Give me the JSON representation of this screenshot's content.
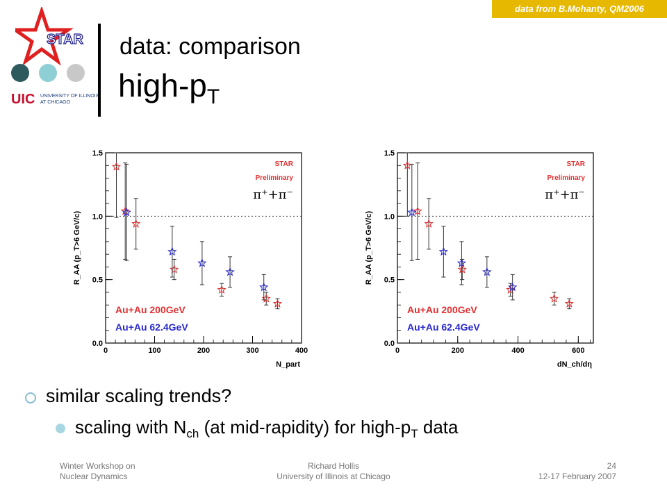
{
  "source_note": "data from B.Mohanty, QM2006",
  "logo": {
    "star_text": "STAR",
    "uic_mark": "UIC",
    "uic_name_line1": "UNIVERSITY OF ILLINOIS",
    "uic_name_line2": "AT CHICAGO",
    "dot_colors": [
      "#2e5a5e",
      "#8ecfd6",
      "#c8c8c8"
    ]
  },
  "title": {
    "line1": "data: comparison",
    "line2_main": "high-p",
    "line2_sub": "T"
  },
  "bullets": {
    "b1": "similar scaling trends?",
    "b2_pre": "scaling with N",
    "b2_sub1": "ch",
    "b2_mid": " (at mid-rapidity) for high-p",
    "b2_sub2": "T",
    "b2_post": " data"
  },
  "footer": {
    "left_line1": "Winter Workshop on",
    "left_line2": "Nuclear Dynamics",
    "center_line1": "Richard Hollis",
    "center_line2": "University of Illinois at Chicago",
    "right_line1": "24",
    "right_line2": "12-17 February 2007"
  },
  "colors": {
    "red": "#e03030",
    "blue": "#2a2ad0",
    "label_red": "#e03030",
    "label_blue": "#2a2ad0"
  },
  "chart_data": [
    {
      "type": "scatter",
      "ylabel": "R_AA (p_T>6 GeV/c)",
      "xlabel": "N_part",
      "xlim": [
        0,
        400
      ],
      "ylim": [
        0,
        1.5
      ],
      "xticks": [
        0,
        100,
        200,
        300,
        400
      ],
      "yticks": [
        0.0,
        0.5,
        1.0,
        1.5
      ],
      "xtick_labels": [
        "0",
        "100",
        "200",
        "300",
        "400"
      ],
      "ytick_labels": [
        "0.0",
        "0.5",
        "1.0",
        "1.5"
      ],
      "reference_line": 1.0,
      "annotation_star": "STAR",
      "annotation_prelim": "Preliminary",
      "annotation_particle": "π⁺+π⁻",
      "series": [
        {
          "name": "Au+Au 200GeV",
          "color": "#e03030",
          "x": [
            22,
            40,
            62,
            140,
            237,
            328,
            351
          ],
          "y": [
            1.39,
            1.04,
            0.94,
            0.58,
            0.42,
            0.35,
            0.31
          ],
          "err": [
            0.4,
            0.38,
            0.2,
            0.08,
            0.05,
            0.05,
            0.04
          ]
        },
        {
          "name": "Au+Au 62.4GeV",
          "color": "#2a2ad0",
          "x": [
            43,
            136,
            197,
            254,
            323
          ],
          "y": [
            1.03,
            0.72,
            0.63,
            0.56,
            0.44
          ],
          "err": [
            0.38,
            0.2,
            0.17,
            0.12,
            0.1
          ]
        }
      ]
    },
    {
      "type": "scatter",
      "ylabel": "R_AA (p_T>6 GeV/c)",
      "xlabel": "dN_ch/dη",
      "xlim": [
        0,
        650
      ],
      "ylim": [
        0,
        1.5
      ],
      "xticks": [
        0,
        200,
        400,
        600
      ],
      "yticks": [
        0.0,
        0.5,
        1.0,
        1.5
      ],
      "xtick_labels": [
        "0",
        "200",
        "400",
        "600"
      ],
      "ytick_labels": [
        "0.0",
        "0.5",
        "1.0",
        "1.5"
      ],
      "reference_line": 1.0,
      "annotation_star": "STAR",
      "annotation_prelim": "Preliminary",
      "annotation_particle": "π⁺+π⁻",
      "series": [
        {
          "name": "Au+Au 200GeV",
          "color": "#e03030",
          "x": [
            33,
            67,
            104,
            215,
            375,
            520,
            570
          ],
          "y": [
            1.4,
            1.04,
            0.94,
            0.58,
            0.42,
            0.35,
            0.31
          ],
          "err": [
            0.4,
            0.38,
            0.2,
            0.08,
            0.05,
            0.05,
            0.04
          ]
        },
        {
          "name": "Au+Au 62.4GeV",
          "color": "#2a2ad0",
          "x": [
            48,
            153,
            213,
            297,
            382
          ],
          "y": [
            1.03,
            0.72,
            0.63,
            0.56,
            0.44
          ],
          "err": [
            0.38,
            0.2,
            0.17,
            0.12,
            0.1
          ]
        }
      ]
    }
  ]
}
